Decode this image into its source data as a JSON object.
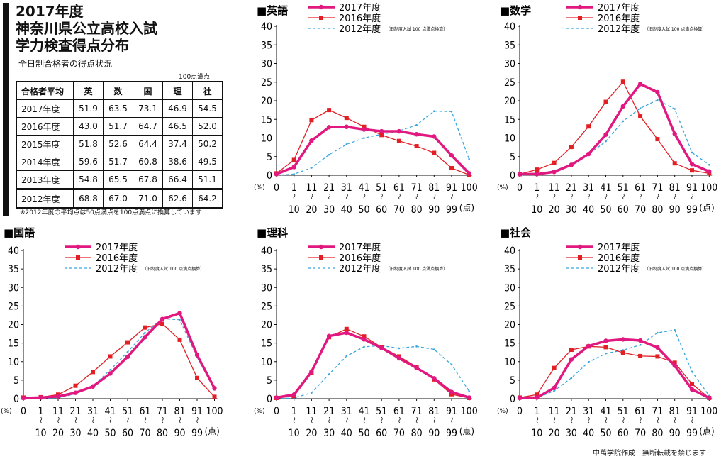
{
  "header": {
    "title_lines": [
      "2017年度",
      "神奈川県公立高校入試",
      "学力検査得点分布"
    ],
    "subtitle": "全日制合格者の得点状況",
    "unit_note": "100点満点",
    "footnote": "※2012年度の平均点は50点満点を100点満点に換算しています",
    "credit": "中萬学院作成　無断転載を禁じます"
  },
  "score_table": {
    "headers": [
      "合格者平均",
      "英",
      "数",
      "国",
      "理",
      "社"
    ],
    "rows": [
      {
        "year": "2017年度",
        "values": [
          "51.9",
          "63.5",
          "73.1",
          "46.9",
          "54.5"
        ]
      },
      {
        "year": "2016年度",
        "values": [
          "43.0",
          "51.7",
          "64.7",
          "46.5",
          "52.0"
        ]
      },
      {
        "year": "2015年度",
        "values": [
          "51.8",
          "52.6",
          "64.4",
          "37.4",
          "50.2"
        ]
      },
      {
        "year": "2014年度",
        "values": [
          "59.6",
          "51.7",
          "60.8",
          "38.6",
          "49.5"
        ]
      },
      {
        "year": "2013年度",
        "values": [
          "54.8",
          "65.5",
          "67.8",
          "66.4",
          "51.1"
        ]
      },
      {
        "year": "2012年度",
        "values": [
          "68.8",
          "67.0",
          "71.0",
          "62.6",
          "64.2"
        ]
      }
    ]
  },
  "legend_common": {
    "note_2012": "（旧制度入試 100 点満点換算）"
  },
  "chart_data": [
    {
      "type": "line",
      "title": "■英語",
      "ylabel": "(%)",
      "xunit": "(点)",
      "ylim": [
        0,
        40
      ],
      "yticks": [
        "0",
        "5",
        "10",
        "15",
        "20",
        "25",
        "30",
        "35",
        "40"
      ],
      "x_top": [
        "0",
        "1",
        "11",
        "21",
        "31",
        "41",
        "51",
        "61",
        "71",
        "81",
        "91",
        "100"
      ],
      "x_bottom": [
        "",
        "10",
        "20",
        "30",
        "40",
        "50",
        "60",
        "70",
        "80",
        "90",
        "99",
        ""
      ],
      "series": [
        {
          "name": "2017年度",
          "color": "#e0187f",
          "values": [
            0.3,
            2.2,
            9.3,
            12.9,
            13.0,
            12.3,
            11.8,
            11.8,
            11.0,
            10.4,
            5.3,
            0.5
          ]
        },
        {
          "name": "2016年度",
          "color": "#e31f26",
          "values": [
            0.5,
            4.1,
            14.8,
            17.5,
            15.4,
            13.0,
            10.8,
            9.2,
            7.8,
            6.0,
            1.9,
            0.1
          ]
        },
        {
          "name": "2012年度",
          "color": "#3aa6dd",
          "values": [
            0.0,
            0.3,
            2.0,
            5.5,
            8.3,
            10.0,
            11.0,
            11.9,
            13.5,
            17.2,
            17.1,
            4.3
          ]
        }
      ]
    },
    {
      "type": "line",
      "title": "■数学",
      "ylabel": "(%)",
      "xunit": "(点)",
      "ylim": [
        0,
        40
      ],
      "yticks": [
        "0",
        "5",
        "10",
        "15",
        "20",
        "25",
        "30",
        "35",
        "40"
      ],
      "x_top": [
        "0",
        "1",
        "11",
        "21",
        "31",
        "41",
        "51",
        "61",
        "71",
        "81",
        "91",
        "100"
      ],
      "x_bottom": [
        "",
        "10",
        "20",
        "30",
        "40",
        "50",
        "60",
        "70",
        "80",
        "90",
        "99",
        ""
      ],
      "series": [
        {
          "name": "2017年度",
          "color": "#e0187f",
          "values": [
            0.3,
            0.3,
            0.9,
            2.8,
            5.7,
            10.9,
            18.5,
            24.5,
            22.3,
            11.1,
            3.0,
            1.0
          ]
        },
        {
          "name": "2016年度",
          "color": "#e31f26",
          "values": [
            0.3,
            1.5,
            3.3,
            7.6,
            13.1,
            19.7,
            25.1,
            15.8,
            9.7,
            3.2,
            1.3,
            0.5
          ]
        },
        {
          "name": "2012年度",
          "color": "#3aa6dd",
          "values": [
            0.0,
            0.4,
            1.2,
            3.0,
            5.6,
            9.1,
            14.5,
            18.0,
            20.2,
            17.8,
            6.1,
            2.8
          ]
        }
      ]
    },
    {
      "type": "line",
      "title": "■国語",
      "ylabel": "(%)",
      "xunit": "(点)",
      "ylim": [
        0,
        40
      ],
      "yticks": [
        "0",
        "5",
        "10",
        "15",
        "20",
        "25",
        "30",
        "35",
        "40"
      ],
      "x_top": [
        "0",
        "1",
        "11",
        "21",
        "31",
        "41",
        "51",
        "61",
        "71",
        "81",
        "91",
        "100"
      ],
      "x_bottom": [
        "",
        "10",
        "20",
        "30",
        "40",
        "50",
        "60",
        "70",
        "80",
        "90",
        "99",
        ""
      ],
      "series": [
        {
          "name": "2017年度",
          "color": "#e0187f",
          "values": [
            0.2,
            0.3,
            0.6,
            1.6,
            3.3,
            6.8,
            11.3,
            16.6,
            21.5,
            23.1,
            11.8,
            2.8
          ]
        },
        {
          "name": "2016年度",
          "color": "#e31f26",
          "values": [
            0.3,
            0.4,
            1.1,
            3.5,
            7.2,
            11.4,
            15.2,
            19.2,
            20.2,
            15.9,
            5.6,
            0.5
          ]
        },
        {
          "name": "2012年度",
          "color": "#3aa6dd",
          "values": [
            0.0,
            0.0,
            0.2,
            1.3,
            3.4,
            7.8,
            12.6,
            17.8,
            21.6,
            21.3,
            11.2,
            2.6
          ]
        }
      ]
    },
    {
      "type": "line",
      "title": "■理科",
      "ylabel": "(%)",
      "xunit": "(点)",
      "ylim": [
        0,
        40
      ],
      "yticks": [
        "0",
        "5",
        "10",
        "15",
        "20",
        "25",
        "30",
        "35",
        "40"
      ],
      "x_top": [
        "0",
        "1",
        "11",
        "21",
        "31",
        "41",
        "51",
        "61",
        "71",
        "81",
        "91",
        "100"
      ],
      "x_bottom": [
        "",
        "10",
        "20",
        "30",
        "40",
        "50",
        "60",
        "70",
        "80",
        "90",
        "99",
        ""
      ],
      "series": [
        {
          "name": "2017年度",
          "color": "#e0187f",
          "values": [
            0.3,
            1.1,
            7.3,
            16.9,
            17.8,
            16.0,
            13.7,
            10.9,
            8.3,
            5.5,
            1.8,
            0.3
          ]
        },
        {
          "name": "2016年度",
          "color": "#e31f26",
          "values": [
            0.2,
            0.7,
            7.0,
            16.6,
            18.8,
            16.8,
            13.9,
            11.4,
            8.6,
            5.2,
            1.2,
            0.2
          ]
        },
        {
          "name": "2012年度",
          "color": "#3aa6dd",
          "values": [
            0.0,
            0.2,
            1.6,
            6.6,
            11.5,
            14.0,
            14.3,
            13.6,
            14.1,
            13.3,
            9.2,
            2.0
          ]
        }
      ]
    },
    {
      "type": "line",
      "title": "■社会",
      "ylabel": "(%)",
      "xunit": "(点)",
      "ylim": [
        0,
        40
      ],
      "yticks": [
        "0",
        "5",
        "10",
        "15",
        "20",
        "25",
        "30",
        "35",
        "40"
      ],
      "x_top": [
        "0",
        "1",
        "11",
        "21",
        "31",
        "41",
        "51",
        "61",
        "71",
        "81",
        "91",
        "100"
      ],
      "x_bottom": [
        "",
        "10",
        "20",
        "30",
        "40",
        "50",
        "60",
        "70",
        "80",
        "90",
        "99",
        ""
      ],
      "series": [
        {
          "name": "2017年度",
          "color": "#e0187f",
          "values": [
            0.2,
            0.3,
            2.9,
            10.6,
            14.2,
            15.6,
            16.0,
            15.7,
            13.8,
            8.9,
            2.5,
            0.2
          ]
        },
        {
          "name": "2016年度",
          "color": "#e31f26",
          "values": [
            0.3,
            1.1,
            8.3,
            13.2,
            14.1,
            13.9,
            12.4,
            11.5,
            11.4,
            9.7,
            4.0,
            0.2
          ]
        },
        {
          "name": "2012年度",
          "color": "#3aa6dd",
          "values": [
            0.0,
            0.2,
            2.1,
            5.6,
            9.9,
            12.2,
            13.1,
            14.5,
            17.8,
            18.5,
            7.3,
            0.8
          ]
        }
      ]
    }
  ]
}
